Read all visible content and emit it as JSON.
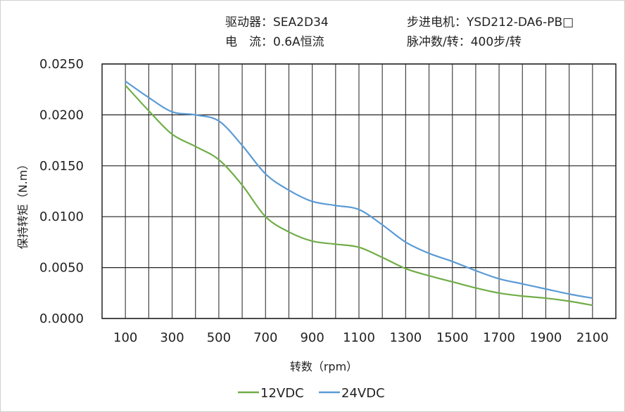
{
  "header": {
    "driver": "驱动器：SEA2D34",
    "current": "电　流：0.6A恒流",
    "motor": "步进电机：YSD212-DA6-PB□",
    "pulses": "脉冲数/转：400步/转"
  },
  "chart_data": {
    "type": "line",
    "title": "",
    "xlabel": "转数（rpm）",
    "ylabel": "保持转矩（N.m）",
    "x": [
      100,
      200,
      300,
      400,
      500,
      600,
      700,
      800,
      900,
      1000,
      1100,
      1200,
      1300,
      1400,
      1500,
      1600,
      1700,
      1800,
      1900,
      2000,
      2100
    ],
    "xticks": [
      "100",
      "300",
      "500",
      "700",
      "900",
      "1100",
      "1300",
      "1500",
      "1700",
      "1900",
      "2100"
    ],
    "yticks": [
      "0.0000",
      "0.0050",
      "0.0100",
      "0.0150",
      "0.0200",
      "0.0250"
    ],
    "xlim": [
      0,
      2200
    ],
    "ylim": [
      0,
      0.025
    ],
    "grid": true,
    "legend": "bottom",
    "series": [
      {
        "name": "12VDC",
        "color": "#70ad47",
        "values": [
          0.0229,
          0.0204,
          0.0181,
          0.0169,
          0.0156,
          0.0131,
          0.01,
          0.0085,
          0.0076,
          0.0073,
          0.007,
          0.006,
          0.0049,
          0.0042,
          0.0036,
          0.003,
          0.0025,
          0.0022,
          0.002,
          0.0017,
          0.0013
        ]
      },
      {
        "name": "24VDC",
        "color": "#5b9bd5",
        "values": [
          0.0233,
          0.0217,
          0.0203,
          0.02,
          0.0194,
          0.017,
          0.0142,
          0.0126,
          0.0115,
          0.0111,
          0.0107,
          0.0092,
          0.0075,
          0.0064,
          0.0056,
          0.0047,
          0.0039,
          0.0034,
          0.0029,
          0.0024,
          0.002
        ]
      }
    ]
  }
}
